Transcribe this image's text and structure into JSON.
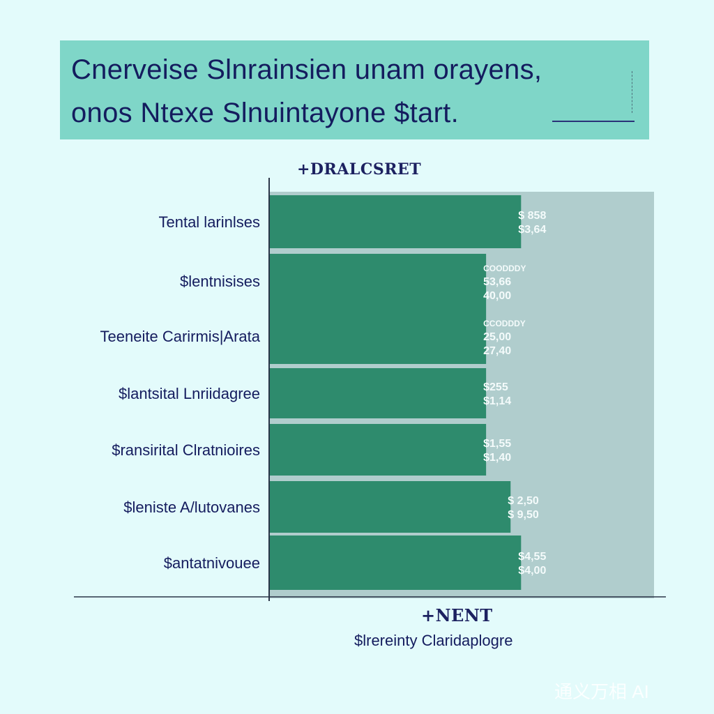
{
  "title": {
    "line1": "Cnerveise Slnrainsien unam orayens,",
    "line2": "onos Ntexe Slnuintayone $tart."
  },
  "legend_top": "+DRALCSRET",
  "legend_bottom": "+NENT",
  "x_caption": "$lrereinty Claridaplogre",
  "watermark": "通义万相 AI",
  "colors": {
    "background": "#e3fbfb",
    "title_box": "#7fd6c8",
    "bar": "#2e8b6d",
    "panel": "#b0cdcd",
    "text": "#141c5e"
  },
  "chart_data": {
    "type": "bar",
    "orientation": "horizontal",
    "title": "Cnerveise Slnrainsien unam orayens, onos Ntexe Slnuintayone $tart.",
    "xlabel": "$lrereinty Claridaplogre",
    "ylabel": "",
    "categories": [
      "Tental larinlses",
      "$lentnisises",
      "Teeneite Carirmis|Arata",
      "$lantsital Lnriidagree",
      "$ransirital Clratnioires",
      "$leniste A/lutovanes",
      "$antatnivouee"
    ],
    "values": [
      360,
      310,
      310,
      310,
      310,
      345,
      360
    ],
    "xlim": [
      0,
      550
    ],
    "value_labels": [
      [
        "$ 858",
        "$3,64"
      ],
      [
        "COODDDY",
        "53,66",
        "40,00"
      ],
      [
        "CCODDDY",
        "25,00",
        "27,40"
      ],
      [
        "$255",
        "$1,14"
      ],
      [
        "$1,55",
        "$1,40"
      ],
      [
        "$ 2,50",
        "$ 9,50"
      ],
      [
        "$4,55",
        "$4,00"
      ]
    ],
    "grid": false,
    "legend": "top"
  }
}
